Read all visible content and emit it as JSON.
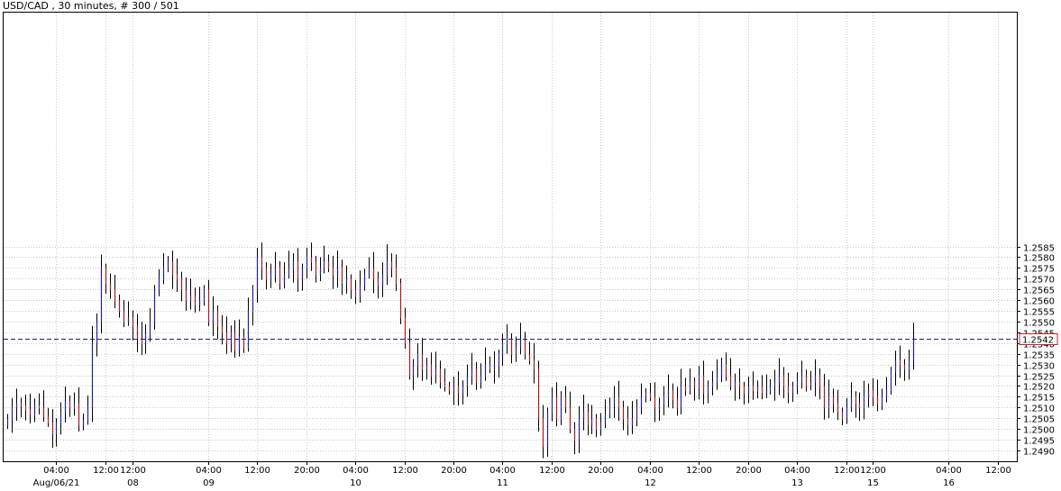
{
  "header": {
    "title": "USD/CAD , 30 minutes, # 300 / 501"
  },
  "colors": {
    "background": "#ffffff",
    "up_bar": "#1f1fa8",
    "down_bar": "#b01818",
    "neutral_bar": "#000000",
    "current_price_line": "#1a1a8c",
    "current_price_box": "#d02020",
    "grid": "#c8c8c8"
  },
  "chart_data": {
    "type": "ohlc",
    "symbol": "USD/CAD",
    "timeframe": "30 minutes",
    "ylim": [
      1.2486,
      1.2593
    ],
    "yticks": [
      "1.2490",
      "1.2495",
      "1.2500",
      "1.2505",
      "1.2510",
      "1.2515",
      "1.2520",
      "1.2525",
      "1.2530",
      "1.2535",
      "1.2540",
      "1.2545",
      "1.2550",
      "1.2555",
      "1.2560",
      "1.2565",
      "1.2570",
      "1.2575",
      "1.2580",
      "1.2585"
    ],
    "grid": true,
    "current_price": 1.2542,
    "current_price_label": "1.2542",
    "x_ticks": [
      {
        "bar": 11,
        "label": "04:00",
        "date": "Aug/06/21"
      },
      {
        "bar": 22,
        "label": "12:00",
        "date": ""
      },
      {
        "bar": 28,
        "label": "12:00",
        "date": "08"
      },
      {
        "bar": 45,
        "label": "04:00",
        "date": "09"
      },
      {
        "bar": 56,
        "label": "12:00",
        "date": ""
      },
      {
        "bar": 67,
        "label": "20:00",
        "date": ""
      },
      {
        "bar": 78,
        "label": "04:00",
        "date": "10"
      },
      {
        "bar": 89,
        "label": "12:00",
        "date": ""
      },
      {
        "bar": 100,
        "label": "20:00",
        "date": ""
      },
      {
        "bar": 111,
        "label": "04:00",
        "date": "11"
      },
      {
        "bar": 122,
        "label": "12:00",
        "date": ""
      },
      {
        "bar": 133,
        "label": "20:00",
        "date": ""
      },
      {
        "bar": 144,
        "label": "04:00",
        "date": "12"
      },
      {
        "bar": 155,
        "label": "12:00",
        "date": ""
      },
      {
        "bar": 166,
        "label": "20:00",
        "date": ""
      },
      {
        "bar": 177,
        "label": "04:00",
        "date": "13"
      },
      {
        "bar": 188,
        "label": "12:00",
        "date": ""
      },
      {
        "bar": 194,
        "label": "12:00",
        "date": "15"
      },
      {
        "bar": 211,
        "label": "04:00",
        "date": "16"
      },
      {
        "bar": 222,
        "label": "12:00",
        "date": ""
      }
    ],
    "closes": [
      1.2505,
      1.251,
      1.2512,
      1.2511,
      1.2509,
      1.2507,
      1.2511,
      1.251,
      1.2506,
      1.2503,
      1.2498,
      1.2503,
      1.2508,
      1.2513,
      1.251,
      1.2512,
      1.2502,
      1.2504,
      1.251,
      1.254,
      1.255,
      1.2575,
      1.2568,
      1.2565,
      1.256,
      1.2555,
      1.255,
      1.2552,
      1.2548,
      1.2542,
      1.254,
      1.2545,
      1.255,
      1.2565,
      1.257,
      1.2575,
      1.2578,
      1.2572,
      1.257,
      1.2565,
      1.256,
      1.2562,
      1.2558,
      1.256,
      1.2565,
      1.255,
      1.2555,
      1.2548,
      1.2545,
      1.254,
      1.2545,
      1.2537,
      1.2543,
      1.2538,
      1.2555,
      1.2565,
      1.258,
      1.2575,
      1.257,
      1.2572,
      1.2575,
      1.2568,
      1.2572,
      1.2575,
      1.2578,
      1.257,
      1.2575,
      1.258,
      1.2578,
      1.2572,
      1.2575,
      1.2578,
      1.2575,
      1.2572,
      1.2575,
      1.2568,
      1.257,
      1.2565,
      1.2562,
      1.2567,
      1.2572,
      1.2575,
      1.257,
      1.2567,
      1.2572,
      1.2578,
      1.2575,
      1.2568,
      1.2552,
      1.254,
      1.2525,
      1.253,
      1.2535,
      1.2528,
      1.253,
      1.2525,
      1.2528,
      1.2522,
      1.252,
      1.2518,
      1.252,
      1.2517,
      1.252,
      1.2525,
      1.2528,
      1.2522,
      1.2525,
      1.253,
      1.2528,
      1.253,
      1.2535,
      1.254,
      1.2542,
      1.2535,
      1.2538,
      1.2542,
      1.2535,
      1.2532,
      1.2528,
      1.2505,
      1.2492,
      1.2508,
      1.2515,
      1.2505,
      1.2515,
      1.251,
      1.25,
      1.2495,
      1.2505,
      1.2508,
      1.2502,
      1.2505,
      1.25,
      1.2503,
      1.2507,
      1.2512,
      1.2515,
      1.251,
      1.2505,
      1.2502,
      1.2505,
      1.251,
      1.2515,
      1.2517,
      1.2515,
      1.251,
      1.2512,
      1.2515,
      1.2518,
      1.2514,
      1.251,
      1.252,
      1.2518,
      1.2522,
      1.252,
      1.2525,
      1.2517,
      1.252,
      1.2522,
      1.2525,
      1.253,
      1.2525,
      1.252,
      1.2522,
      1.252,
      1.2517,
      1.252,
      1.2518,
      1.252,
      1.2517,
      1.2518,
      1.252,
      1.2522,
      1.2525,
      1.252,
      1.2517,
      1.252,
      1.2522,
      1.2525,
      1.252,
      1.2522,
      1.2525,
      1.252,
      1.251,
      1.2515,
      1.2512,
      1.2508,
      1.2505,
      1.251,
      1.2515,
      1.2512,
      1.251,
      1.2515,
      1.2518,
      1.2515,
      1.2512,
      1.2515,
      1.2518,
      1.2527,
      1.2532,
      1.253,
      1.2528,
      1.2532,
      1.2542
    ]
  }
}
